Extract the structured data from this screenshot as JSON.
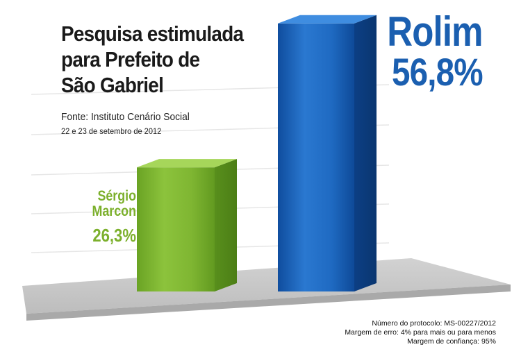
{
  "title_lines": [
    "Pesquisa estimulada",
    "para Prefeito de",
    "São Gabriel"
  ],
  "source": "Fonte: Instituto Cenário Social",
  "dates": "22 e 23 de setembro de 2012",
  "notes": [
    "Número do protocolo: MS-00227/2012",
    "Margem de erro: 4% para mais ou para menos",
    "Margem de confiança: 95%"
  ],
  "colors": {
    "blue": "#1b5fb0",
    "green": "#7cb02c",
    "floor": "#c8c8c8",
    "grid": "#e6e6e6"
  },
  "chart_data": {
    "type": "bar",
    "categories": [
      "Sérgio Marcon",
      "Rolim"
    ],
    "values": [
      26.3,
      56.8
    ],
    "value_labels": [
      "26,3%",
      "56,8%"
    ],
    "category_labels": [
      [
        "Sérgio",
        "Marcon"
      ],
      [
        "Rolim"
      ]
    ],
    "ylim": [
      0,
      60
    ],
    "grid": true,
    "style": "3d-bars-on-floor"
  }
}
